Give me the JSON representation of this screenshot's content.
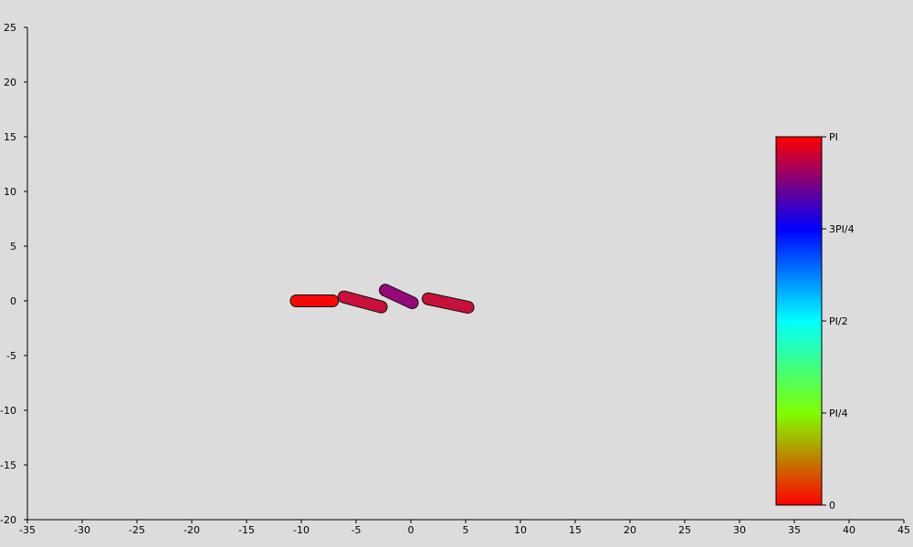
{
  "chart_data": {
    "type": "scatter",
    "title": "",
    "xlabel": "",
    "ylabel": "",
    "xlim": [
      -35,
      45
    ],
    "ylim": [
      -20,
      25
    ],
    "x_ticks": [
      -35,
      -30,
      -25,
      -20,
      -15,
      -10,
      -5,
      0,
      5,
      10,
      15,
      20,
      25,
      30,
      35,
      40,
      45
    ],
    "y_ticks": [
      25,
      20,
      15,
      10,
      5,
      0,
      -5,
      -10,
      -15,
      -20
    ],
    "grid": false,
    "background": "#dcdcdc",
    "rods": [
      {
        "x": -8.8,
        "y": 0.0,
        "angle_deg": 0,
        "length": 3.4,
        "color": "#f40808"
      },
      {
        "x": -4.4,
        "y": -0.1,
        "angle_deg": -15,
        "length": 3.6,
        "color": "#c8103a"
      },
      {
        "x": -1.1,
        "y": 0.4,
        "angle_deg": -25,
        "length": 2.8,
        "color": "#940878"
      },
      {
        "x": 3.4,
        "y": -0.2,
        "angle_deg": -12,
        "length": 3.8,
        "color": "#c8103a"
      }
    ],
    "colorbar": {
      "ticks": [
        {
          "label": "0",
          "value": 0
        },
        {
          "label": "PI/4",
          "value": 0.25
        },
        {
          "label": "PI/2",
          "value": 0.5
        },
        {
          "label": "3PI/4",
          "value": 0.75
        },
        {
          "label": "PI",
          "value": 1
        }
      ],
      "gradient_colors": [
        "#ff0000",
        "#80ff00",
        "#00ffff",
        "#0000ff",
        "#ff0000"
      ]
    }
  }
}
